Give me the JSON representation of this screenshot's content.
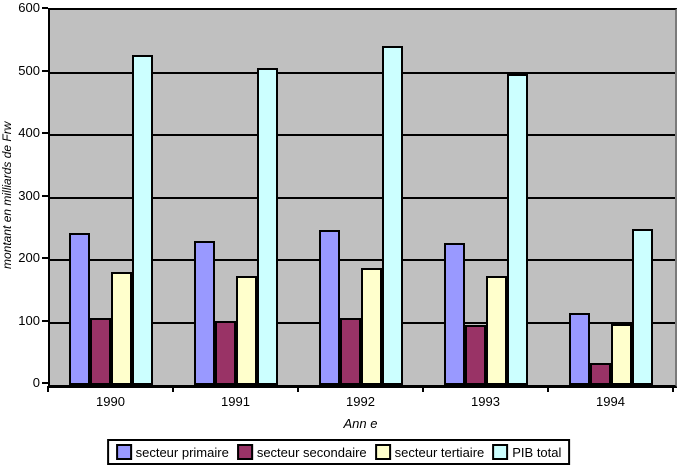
{
  "chart_data": {
    "type": "bar",
    "title": "",
    "xlabel": "Ann e",
    "ylabel": "montant en milliards de Frw",
    "categories": [
      "1990",
      "1991",
      "1992",
      "1993",
      "1994"
    ],
    "series": [
      {
        "name": "secteur primaire",
        "color": "#9999FF",
        "values": [
          243,
          230,
          248,
          227,
          116
        ]
      },
      {
        "name": "secteur secondaire",
        "color": "#993366",
        "values": [
          107,
          102,
          108,
          96,
          35
        ]
      },
      {
        "name": "secteur tertiaire",
        "color": "#FFFFCC",
        "values": [
          181,
          175,
          188,
          175,
          97
        ]
      },
      {
        "name": "PIB total",
        "color": "#CCFFFF",
        "values": [
          528,
          508,
          543,
          497,
          250
        ]
      }
    ],
    "ylim": [
      0,
      600
    ],
    "ytick_step": 100,
    "yticks": [
      0,
      100,
      200,
      300,
      400,
      500,
      600
    ],
    "grid": true,
    "legend_position": "bottom",
    "plot_background": "#C0C0C0",
    "grid_color": "#000000",
    "bar_border_color": "#000000"
  }
}
